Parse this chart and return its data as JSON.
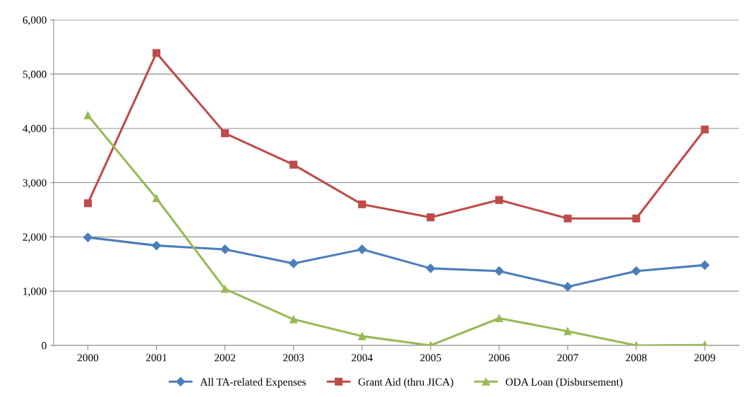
{
  "chart_data": {
    "type": "line",
    "categories": [
      "2000",
      "2001",
      "2002",
      "2003",
      "2004",
      "2005",
      "2006",
      "2007",
      "2008",
      "2009"
    ],
    "series": [
      {
        "name": "All TA-related Expenses",
        "color": "#4a7ebb",
        "marker": "diamond",
        "values": [
          1990,
          1840,
          1770,
          1510,
          1770,
          1420,
          1370,
          1080,
          1370,
          1480
        ]
      },
      {
        "name": "Grant Aid (thru JICA)",
        "color": "#be4b48",
        "marker": "square",
        "values": [
          2620,
          5390,
          3910,
          3330,
          2600,
          2360,
          2680,
          2340,
          2340,
          3980
        ]
      },
      {
        "name": "ODA Loan (Disbursement)",
        "color": "#98b954",
        "marker": "triangle",
        "values": [
          4240,
          2710,
          1040,
          480,
          170,
          0,
          500,
          260,
          0,
          10
        ]
      }
    ],
    "ylim": [
      0,
      6000
    ],
    "yticks": [
      0,
      {
        "value": 1000,
        "label": "1,000"
      },
      {
        "value": 2000,
        "label": "2,000"
      },
      {
        "value": 3000,
        "label": "3,000"
      },
      {
        "value": 4000,
        "label": "4,000"
      },
      {
        "value": 5000,
        "label": "5,000"
      },
      {
        "value": 6000,
        "label": "6,000"
      }
    ],
    "grid": "y",
    "legend": "bottom",
    "line_style": "solid"
  }
}
